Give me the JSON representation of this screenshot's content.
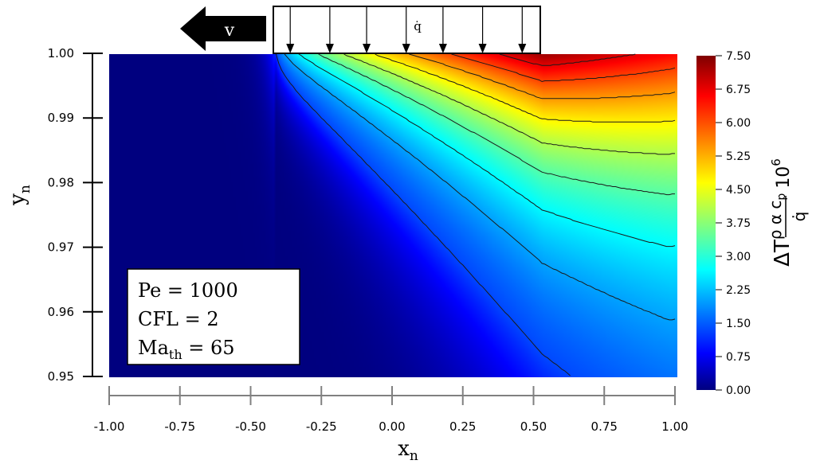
{
  "chart_data": {
    "type": "heatmap",
    "title": "",
    "xlabel": "x",
    "xlabel_sub": "n",
    "ylabel": "y",
    "ylabel_sub": "n",
    "xlim": [
      -1.0,
      1.0
    ],
    "ylim": [
      0.95,
      1.0
    ],
    "x_ticks": [
      -1.0,
      -0.75,
      -0.5,
      -0.25,
      0.0,
      0.25,
      0.5,
      0.75,
      1.0
    ],
    "x_tick_labels": [
      "-1.00",
      "-0.75",
      "-0.50",
      "-0.25",
      "0.00",
      "0.25",
      "0.50",
      "0.75",
      "1.00"
    ],
    "y_ticks": [
      1.0,
      0.99,
      0.98,
      0.97,
      0.96,
      0.95
    ],
    "y_tick_labels": [
      "1.00",
      "0.99",
      "0.98",
      "0.97",
      "0.96",
      "0.95"
    ],
    "colorbar": {
      "range": [
        0.0,
        7.5
      ],
      "ticks": [
        7.5,
        6.75,
        6.0,
        5.25,
        4.5,
        3.75,
        3.0,
        2.25,
        1.5,
        0.75,
        0.0
      ],
      "tick_labels": [
        "7.50",
        "6.75",
        "6.00",
        "5.25",
        "4.50",
        "3.75",
        "3.00",
        "2.25",
        "1.50",
        "0.75",
        "0.00"
      ],
      "colormap": "jet",
      "label": "ΔT (ρ α c_p / q̇) 10^6"
    },
    "heat_flux_region": {
      "x_start": -0.42,
      "x_end": 0.53
    },
    "flux_arrow_x": [
      -0.36,
      -0.22,
      -0.09,
      0.05,
      0.18,
      0.32,
      0.46
    ],
    "contour_levels": [
      0.75,
      1.5,
      2.25,
      3.0,
      3.75,
      4.5,
      5.25,
      6.0,
      6.75
    ],
    "annotations": {
      "heat_flux": "q̇",
      "velocity": "v",
      "params": [
        {
          "text": "Pe = 1000"
        },
        {
          "text": "CFL = 2"
        },
        {
          "text": "Ma",
          "sub": "th",
          "tail": " = 65"
        }
      ]
    },
    "grid": false,
    "legend": "none"
  }
}
